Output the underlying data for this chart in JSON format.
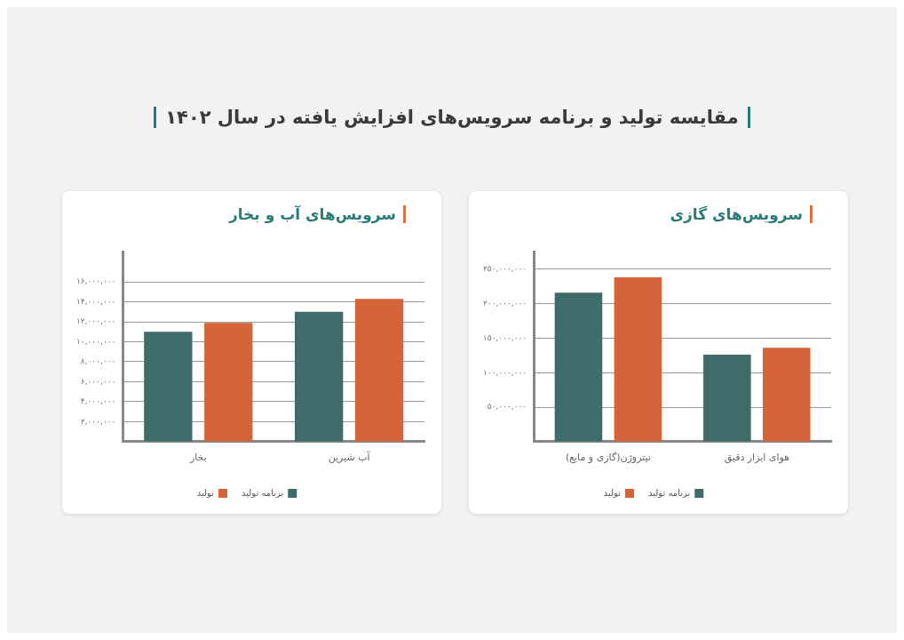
{
  "chart_data": [
    {
      "type": "other",
      "title": "مقایسه تولید و برنامه سرویس‌های افزایش یافته در سال ۱۴۰۲"
    },
    {
      "type": "bar",
      "title": "سرویس‌های آب و بخار",
      "categories": [
        "بخار",
        "آب شیرین"
      ],
      "series": [
        {
          "name": "برنامه تولید",
          "color": "#3f6b6b",
          "values": [
            11000000,
            13000000
          ]
        },
        {
          "name": "تولید",
          "color": "#d4643a",
          "values": [
            11900000,
            14300000
          ]
        }
      ],
      "ylim": [
        0,
        19000000
      ],
      "yticks": [
        {
          "value": 2000000,
          "label": "۲,۰۰۰,۰۰۰"
        },
        {
          "value": 4000000,
          "label": "۴,۰۰۰,۰۰۰"
        },
        {
          "value": 6000000,
          "label": "۶,۰۰۰,۰۰۰"
        },
        {
          "value": 8000000,
          "label": "۸,۰۰۰,۰۰۰"
        },
        {
          "value": 10000000,
          "label": "۱۰,۰۰۰,۰۰۰"
        },
        {
          "value": 12000000,
          "label": "۱۲,۰۰۰,۰۰۰"
        },
        {
          "value": 14000000,
          "label": "۱۴,۰۰۰,۰۰۰"
        },
        {
          "value": 16000000,
          "label": "۱۶,۰۰۰,۰۰۰"
        }
      ],
      "grid": "y",
      "legend": "bottom"
    },
    {
      "type": "bar",
      "title": "سرویس‌های گازی",
      "categories": [
        "نیتروژن(گازی و مایع)",
        "هوای ابزار دقیق"
      ],
      "series": [
        {
          "name": "برنامه تولید",
          "color": "#3f6b6b",
          "values": [
            216000000,
            126000000
          ]
        },
        {
          "name": "تولید",
          "color": "#d4643a",
          "values": [
            238000000,
            136000000
          ]
        }
      ],
      "ylim": [
        0,
        275000000
      ],
      "yticks": [
        {
          "value": 50000000,
          "label": "۵۰,۰۰۰,۰۰۰"
        },
        {
          "value": 100000000,
          "label": "۱۰۰,۰۰۰,۰۰۰"
        },
        {
          "value": 150000000,
          "label": "۱۵۰,۰۰۰,۰۰۰"
        },
        {
          "value": 200000000,
          "label": "۲۰۰,۰۰۰,۰۰۰"
        },
        {
          "value": 250000000,
          "label": "۲۵۰,۰۰۰,۰۰۰"
        }
      ],
      "grid": "y",
      "legend": "bottom"
    }
  ]
}
